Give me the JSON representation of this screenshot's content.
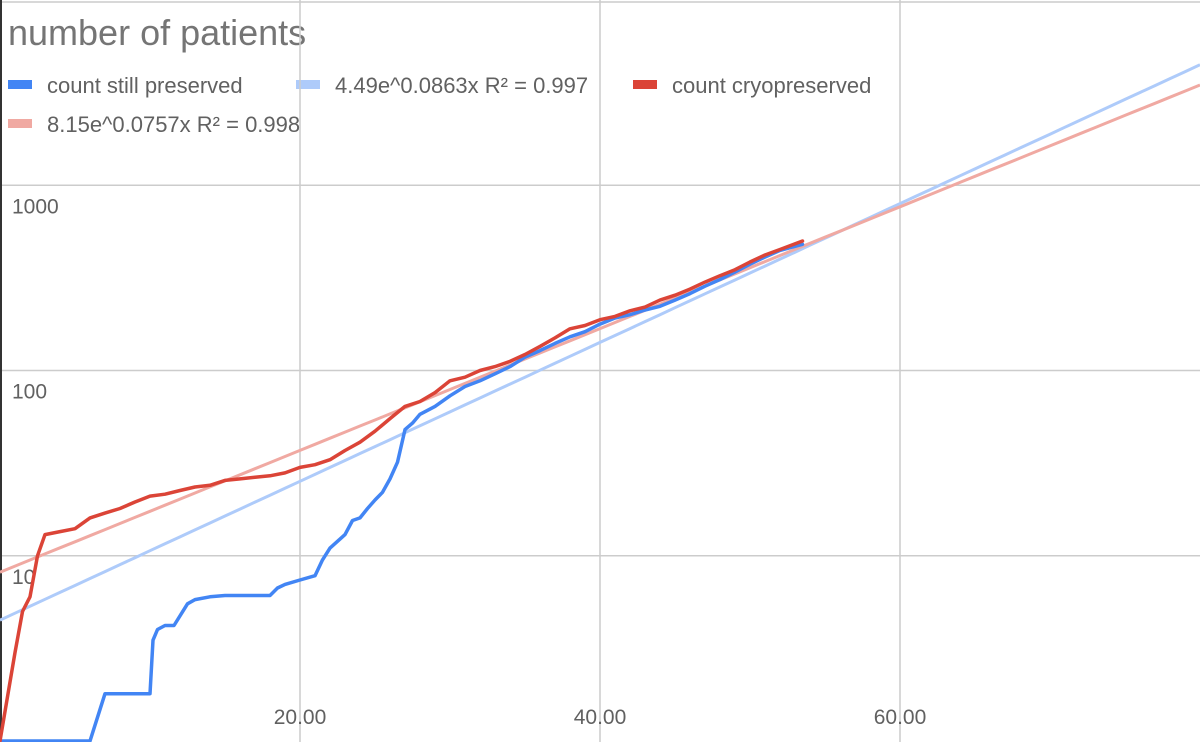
{
  "chart_data": {
    "type": "line",
    "title": "number of patients",
    "xlabel": "",
    "ylabel": "",
    "y_scale": "log",
    "xlim": [
      0,
      80
    ],
    "ylim": [
      1,
      10000
    ],
    "x_ticks": [
      20,
      40,
      60
    ],
    "x_tick_labels": [
      "20.00",
      "40.00",
      "60.00"
    ],
    "y_ticks": [
      10,
      100,
      1000
    ],
    "y_tick_labels": [
      "10",
      "100",
      "1000"
    ],
    "grid": true,
    "legend_position": "top",
    "legend": [
      {
        "label": "count still preserved",
        "color": "#4285f4"
      },
      {
        "label": "4.49e^0.0863x R² = 0.997",
        "color": "#aecbfa"
      },
      {
        "label": "count cryopreserved",
        "color": "#db4437"
      },
      {
        "label": "8.15e^0.0757x R² = 0.998",
        "color": "#f0a9a2"
      }
    ],
    "series": [
      {
        "name": "count still preserved",
        "color": "#4285f4",
        "x": [
          0,
          6,
          7,
          8,
          10,
          10.2,
          10.5,
          11,
          11.6,
          12.5,
          13,
          14,
          15,
          16,
          17,
          18,
          18.5,
          19,
          20,
          21,
          21.5,
          22,
          23,
          23.5,
          24,
          24.5,
          25,
          25.5,
          26,
          26.5,
          27,
          27.5,
          28,
          29,
          30,
          31,
          32,
          33,
          34,
          35,
          36,
          37,
          38,
          39,
          40,
          41,
          42,
          43,
          44,
          45,
          46,
          47,
          48,
          49,
          50,
          51,
          52,
          53.5
        ],
        "y": [
          1,
          1,
          1.8,
          1.8,
          1.8,
          3.5,
          4.0,
          4.2,
          4.2,
          5.5,
          5.8,
          6.0,
          6.1,
          6.1,
          6.1,
          6.1,
          6.7,
          7.0,
          7.4,
          7.8,
          9.5,
          11,
          13,
          15.5,
          16,
          18,
          20,
          22,
          26,
          32,
          48,
          52,
          58,
          64,
          73,
          82,
          88,
          96,
          105,
          118,
          128,
          140,
          152,
          162,
          178,
          192,
          200,
          212,
          222,
          240,
          260,
          285,
          310,
          340,
          375,
          410,
          445,
          480
        ]
      },
      {
        "name": "count cryopreserved",
        "color": "#db4437",
        "x": [
          0,
          1,
          1.5,
          2,
          2.5,
          3,
          4,
          5,
          6,
          7,
          8,
          9,
          10,
          11,
          12,
          13,
          14,
          15,
          16,
          17,
          18,
          19,
          20,
          21,
          22,
          23,
          24,
          25,
          26,
          27,
          28,
          29,
          30,
          31,
          32,
          33,
          34,
          35,
          36,
          37,
          38,
          39,
          40,
          41,
          42,
          43,
          44,
          45,
          46,
          47,
          48,
          49,
          50,
          51,
          52,
          53.5
        ],
        "y": [
          1,
          3,
          5,
          6,
          10,
          13,
          13.5,
          14,
          16,
          17,
          18,
          19.5,
          21,
          21.5,
          22.5,
          23.5,
          24,
          25.5,
          26,
          26.5,
          27,
          28,
          30,
          31,
          33,
          37,
          41,
          47,
          55,
          64,
          68,
          76,
          88,
          92,
          100,
          105,
          112,
          122,
          135,
          150,
          168,
          175,
          188,
          196,
          210,
          220,
          240,
          255,
          275,
          300,
          325,
          350,
          385,
          420,
          450,
          500
        ]
      },
      {
        "name": "4.49e^0.0863x R² = 0.997",
        "color": "#aecbfa",
        "trend": {
          "a": 4.49,
          "b": 0.0863
        },
        "x_range": [
          0,
          80
        ]
      },
      {
        "name": "8.15e^0.0757x R² = 0.998",
        "color": "#f0a9a2",
        "trend": {
          "a": 8.15,
          "b": 0.0757
        },
        "x_range": [
          0,
          80
        ]
      }
    ]
  }
}
